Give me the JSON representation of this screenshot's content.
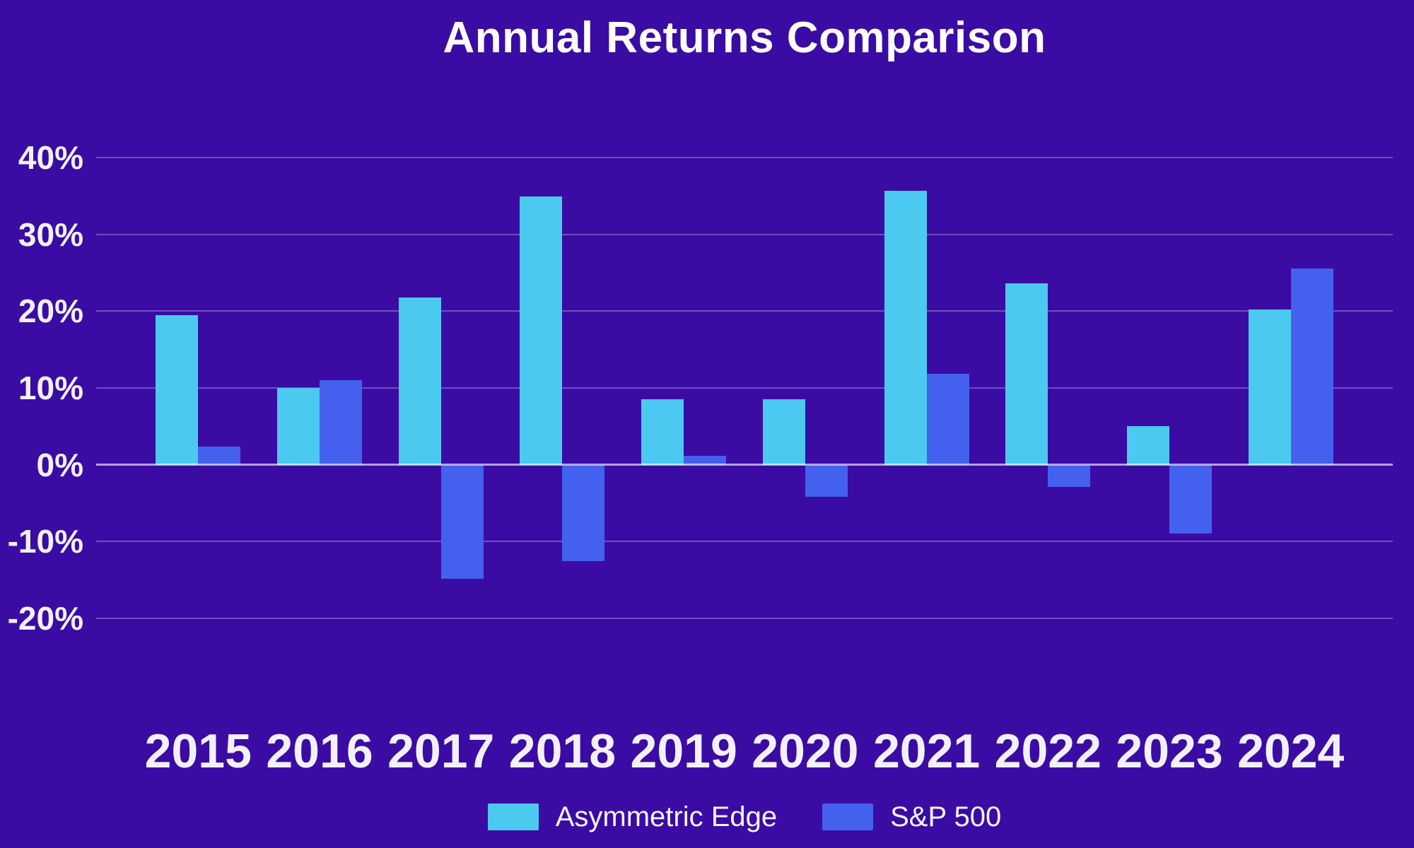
{
  "title": "Annual Returns Comparison",
  "colors": {
    "background": "#3A0CA3",
    "series_asymmetric_edge": "#4CC9F0",
    "series_sp500": "#4361EE",
    "gridline": "rgba(255,255,255,0.28)",
    "zero_line": "rgba(255,255,255,0.62)",
    "text": "#FFFFFF"
  },
  "chart_data": {
    "type": "bar",
    "title": "Annual Returns Comparison",
    "categories": [
      "2015",
      "2016",
      "2017",
      "2018",
      "2019",
      "2020",
      "2021",
      "2022",
      "2023",
      "2024"
    ],
    "series": [
      {
        "name": "Asymmetric Edge",
        "color": "#4CC9F0",
        "values": [
          19.5,
          10.0,
          21.8,
          35.0,
          8.5,
          8.5,
          35.7,
          23.6,
          5.0,
          20.2
        ]
      },
      {
        "name": "S&P 500",
        "color": "#4361EE",
        "values": [
          2.4,
          11.0,
          -14.9,
          -12.6,
          1.2,
          -4.2,
          11.8,
          -2.9,
          -9.0,
          25.6
        ]
      }
    ],
    "xlabel": "",
    "ylabel": "",
    "ylim": [
      -25,
      45
    ],
    "yticks": [
      40,
      30,
      20,
      10,
      0,
      -10,
      -20
    ],
    "ytick_suffix": "%",
    "grid": true,
    "legend_position": "bottom"
  }
}
